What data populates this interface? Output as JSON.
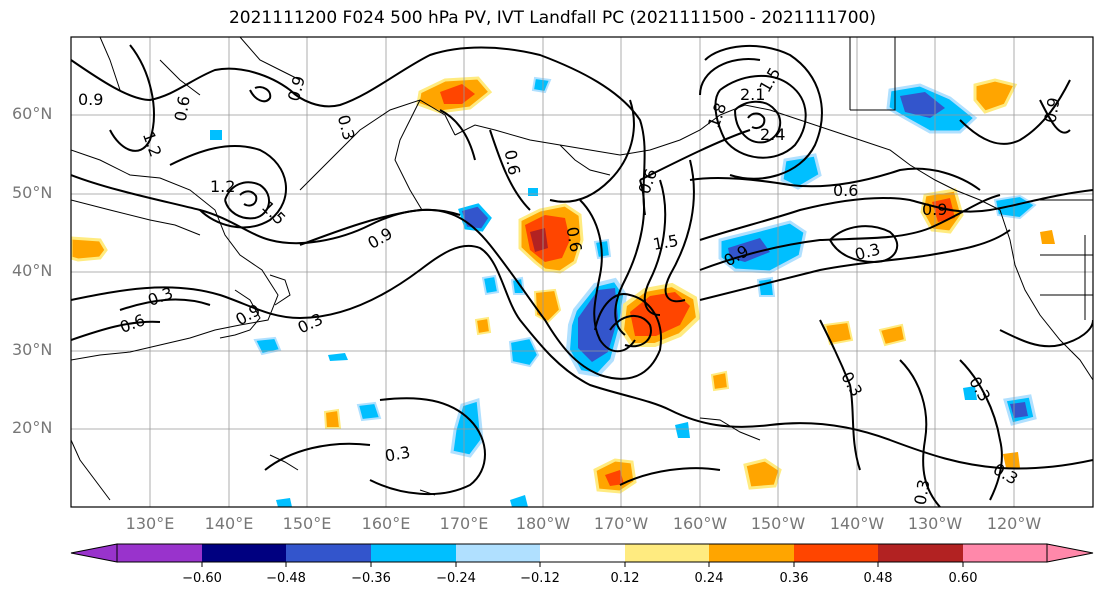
{
  "title": "2021111200 F024 500 hPa PV, IVT Landfall PC (2021111500 - 2021111700)",
  "lat_labels": [
    "60°N",
    "50°N",
    "40°N",
    "30°N",
    "20°N"
  ],
  "lon_labels": [
    "130°E",
    "140°E",
    "150°E",
    "160°E",
    "170°E",
    "180°W",
    "170°W",
    "160°W",
    "150°W",
    "140°W",
    "130°W",
    "120°W"
  ],
  "colorbar": {
    "labels": [
      "−0.60",
      "−0.48",
      "−0.36",
      "−0.24",
      "−0.12",
      "0.12",
      "0.24",
      "0.36",
      "0.48",
      "0.60"
    ],
    "colors": [
      "#9933cc",
      "#000080",
      "#3355cc",
      "#00bfff",
      "#b0e0ff",
      "#ffffff",
      "#ffeb80",
      "#ffa500",
      "#ff4500",
      "#b22222",
      "#ff88aa"
    ]
  },
  "contour_labels": [
    "0.9",
    "0.6",
    "1.2",
    "0.9",
    "0.3",
    "0.6",
    "1.2",
    "1.5",
    "0.9",
    "0.6",
    "0.3",
    "0.9",
    "0.6",
    "0.3",
    "1.5",
    "2.1",
    "1.8",
    "2.4",
    "0.6",
    "0.9",
    "0.3",
    "0.9",
    "1.5",
    "0.6",
    "0.9",
    "0.3",
    "0.3",
    "0.3",
    "0.3",
    "0.3"
  ]
}
